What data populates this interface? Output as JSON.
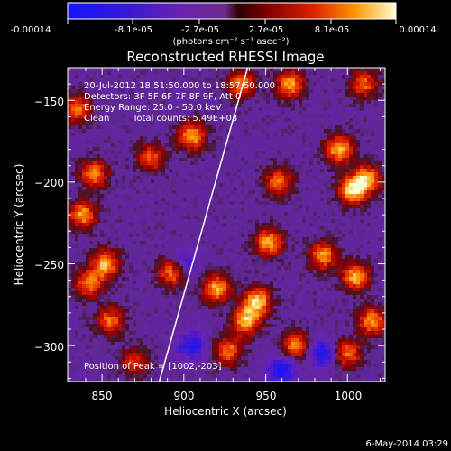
{
  "colorbar": {
    "tick_labels": [
      "-0.00014",
      "-8.1e-05",
      "-2.7e-05",
      "2.7e-05",
      "8.1e-05",
      "0.00014"
    ],
    "units_label": "(photons cm⁻² s⁻¹ asec⁻²)",
    "vmin": -0.00014,
    "vmax": 0.00014
  },
  "chart_data": {
    "type": "heatmap",
    "title": "Reconstructed RHESSI Image",
    "xlabel": "Heliocentric X (arcsec)",
    "ylabel": "Heliocentric Y (arcsec)",
    "xlim": [
      829,
      1023
    ],
    "ylim": [
      -322,
      -130
    ],
    "x_ticks": [
      850,
      900,
      950,
      1000
    ],
    "y_ticks": [
      -150,
      -200,
      -250,
      -300
    ],
    "x_tick_labels": [
      "850",
      "900",
      "950",
      "1000"
    ],
    "y_tick_labels": [
      "−150",
      "−200",
      "−250",
      "−300"
    ],
    "limb_line": [
      [
        885,
        -322
      ],
      [
        939,
        -130
      ]
    ],
    "bright_sources": [
      {
        "x": 835,
        "y": -155,
        "level": 0.75
      },
      {
        "x": 845,
        "y": -195,
        "level": 0.8
      },
      {
        "x": 838,
        "y": -220,
        "level": 0.85
      },
      {
        "x": 852,
        "y": -250,
        "level": 0.9
      },
      {
        "x": 842,
        "y": -262,
        "level": 0.8
      },
      {
        "x": 855,
        "y": -285,
        "level": 0.75
      },
      {
        "x": 880,
        "y": -185,
        "level": 0.7
      },
      {
        "x": 905,
        "y": -172,
        "level": 0.9
      },
      {
        "x": 893,
        "y": -255,
        "level": 0.85
      },
      {
        "x": 920,
        "y": -265,
        "level": 0.9
      },
      {
        "x": 935,
        "y": -140,
        "level": 0.8
      },
      {
        "x": 965,
        "y": -140,
        "level": 0.85
      },
      {
        "x": 958,
        "y": -200,
        "level": 0.75
      },
      {
        "x": 952,
        "y": -237,
        "level": 0.9
      },
      {
        "x": 945,
        "y": -273,
        "level": 1.0
      },
      {
        "x": 938,
        "y": -285,
        "level": 0.95
      },
      {
        "x": 968,
        "y": -300,
        "level": 0.8
      },
      {
        "x": 985,
        "y": -245,
        "level": 0.85
      },
      {
        "x": 995,
        "y": -180,
        "level": 0.95
      },
      {
        "x": 1003,
        "y": -205,
        "level": 1.0
      },
      {
        "x": 1012,
        "y": -198,
        "level": 0.9
      },
      {
        "x": 1005,
        "y": -258,
        "level": 0.9
      },
      {
        "x": 1015,
        "y": -285,
        "level": 0.85
      },
      {
        "x": 1000,
        "y": -305,
        "level": 0.75
      },
      {
        "x": 1010,
        "y": -140,
        "level": 0.7
      },
      {
        "x": 870,
        "y": -310,
        "level": 0.6
      },
      {
        "x": 927,
        "y": -303,
        "level": 0.75
      }
    ],
    "dark_regions": [
      {
        "x": 905,
        "y": -300,
        "level": -0.7
      },
      {
        "x": 960,
        "y": -315,
        "level": -0.8
      },
      {
        "x": 985,
        "y": -305,
        "level": -0.75
      },
      {
        "x": 900,
        "y": -250,
        "level": -0.5
      }
    ]
  },
  "annotations": {
    "time_range": "20-Jul-2012 18:51:50.000 to 18:57:50.000",
    "detectors": "Detectors: 3F 5F 6F 7F 8F 9F, Att 0",
    "energy_range": "Energy Range: 25.0 - 50.0 keV",
    "clean_label": "Clean",
    "total_counts": "Total counts: 5.49E+03",
    "peak_position": "Position of Peak = [1002,-203]"
  },
  "footer": {
    "date": "6-May-2014 03:29"
  }
}
